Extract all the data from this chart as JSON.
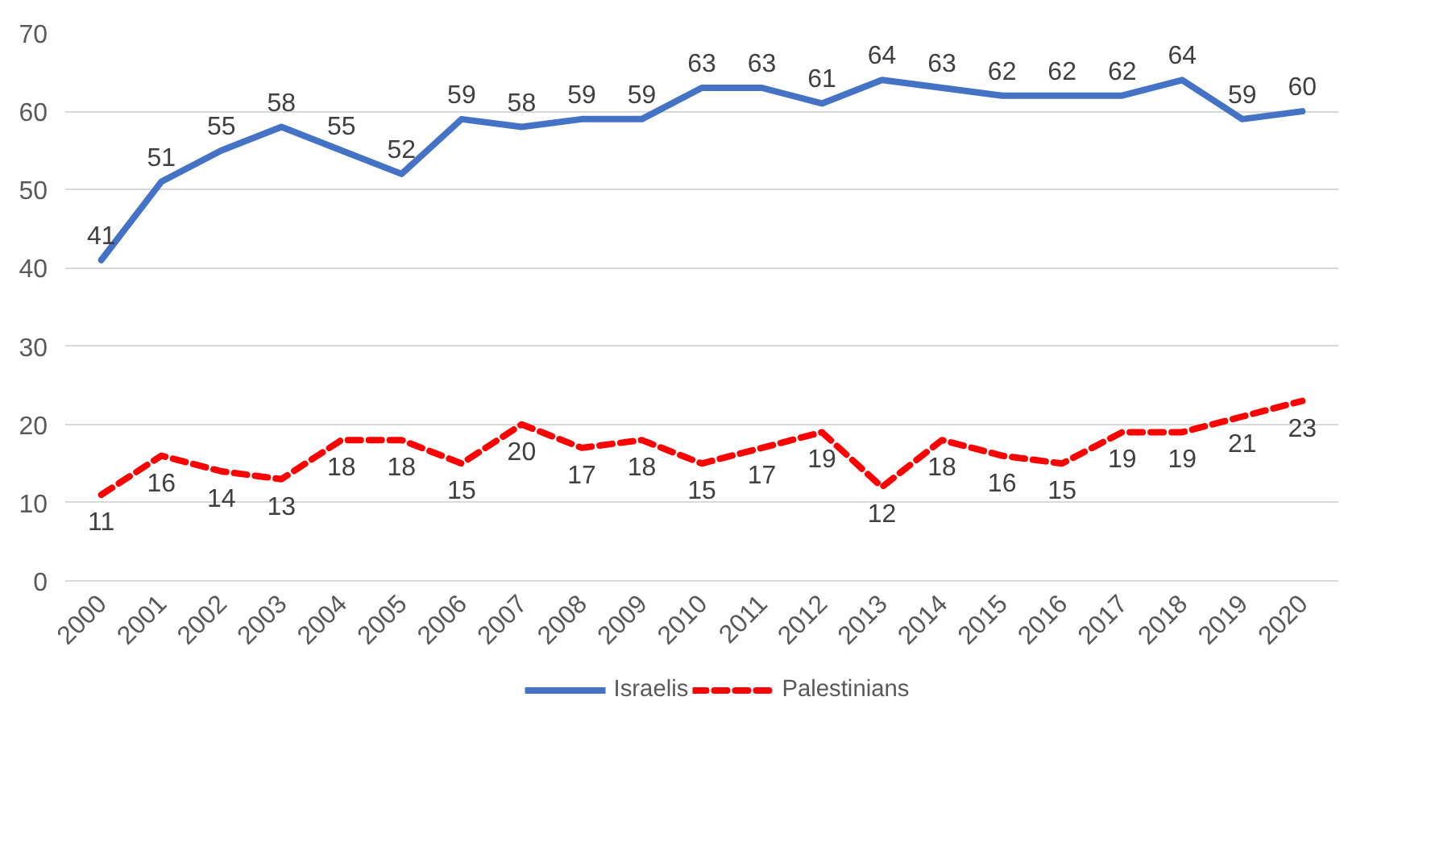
{
  "chart_data": {
    "type": "line",
    "categories": [
      "2000",
      "2001",
      "2002",
      "2003",
      "2004",
      "2005",
      "2006",
      "2007",
      "2008",
      "2009",
      "2010",
      "2011",
      "2012",
      "2013",
      "2014",
      "2015",
      "2016",
      "2017",
      "2018",
      "2019",
      "2020"
    ],
    "series": [
      {
        "name": "Israelis",
        "color": "#4472c4",
        "line_style": "solid",
        "values": [
          41,
          51,
          55,
          58,
          55,
          52,
          59,
          58,
          59,
          59,
          63,
          63,
          61,
          64,
          63,
          62,
          62,
          62,
          64,
          59,
          60
        ]
      },
      {
        "name": "Palestinians",
        "color": "#ff0000",
        "line_style": "dashed",
        "values": [
          11,
          16,
          14,
          13,
          18,
          18,
          15,
          20,
          17,
          18,
          15,
          17,
          19,
          12,
          18,
          16,
          15,
          19,
          19,
          21,
          23
        ]
      }
    ],
    "ylim": [
      0,
      70
    ],
    "yticks": [
      0,
      10,
      20,
      30,
      40,
      50,
      60,
      70
    ],
    "grid": "y",
    "legend": "bottom",
    "data_labels": true,
    "marker": "none"
  }
}
